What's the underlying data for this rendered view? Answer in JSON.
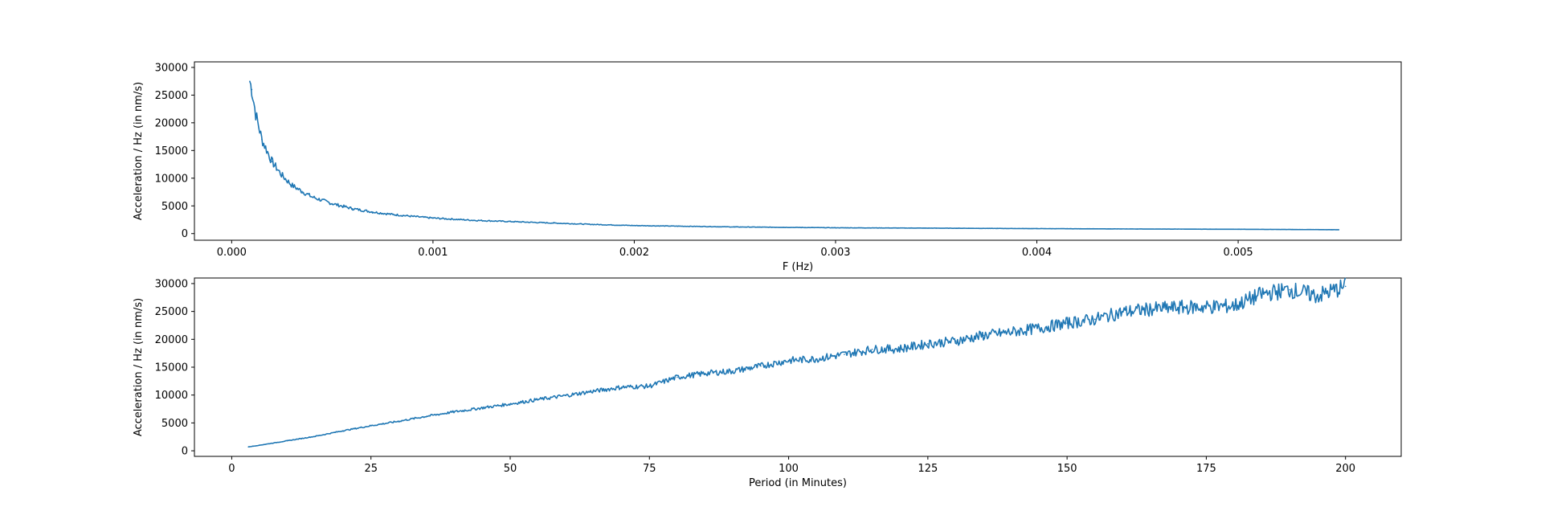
{
  "chart_data": [
    {
      "type": "line",
      "title": "",
      "xlabel": "F (Hz)",
      "ylabel": "Acceleration / Hz (in nm/s)",
      "xlim": [
        -0.000185,
        0.00581
      ],
      "ylim": [
        -1200,
        31000
      ],
      "xticks": [
        0.0,
        0.001,
        0.002,
        0.003,
        0.004,
        0.005
      ],
      "xtick_labels": [
        "0.000",
        "0.001",
        "0.002",
        "0.003",
        "0.004",
        "0.005"
      ],
      "yticks": [
        0,
        5000,
        10000,
        15000,
        20000,
        25000,
        30000
      ],
      "ytick_labels": [
        "0",
        "5000",
        "10000",
        "15000",
        "20000",
        "25000",
        "30000"
      ],
      "grid": false,
      "series": [
        {
          "name": "spectrum_vs_frequency",
          "color": "#1f77b4",
          "x": [
            9e-05,
            0.0001,
            0.00012,
            0.00015,
            0.0002,
            0.00025,
            0.0003,
            0.00035,
            0.0004,
            0.0005,
            0.0006,
            0.0007,
            0.0008,
            0.0009,
            0.001,
            0.0012,
            0.0014,
            0.0016,
            0.0018,
            0.002,
            0.0025,
            0.003,
            0.0035,
            0.004,
            0.0045,
            0.005,
            0.0055
          ],
          "y": [
            27500,
            26000,
            21500,
            17000,
            13000,
            10500,
            8700,
            7600,
            6600,
            5400,
            4500,
            3900,
            3450,
            3100,
            2800,
            2400,
            2150,
            1900,
            1650,
            1450,
            1200,
            1050,
            980,
            900,
            830,
            780,
            700
          ]
        }
      ]
    },
    {
      "type": "line",
      "title": "",
      "xlabel": "Period (in Minutes)",
      "ylabel": "Acceleration / Hz (in nm/s)",
      "xlim": [
        -6.7,
        210
      ],
      "ylim": [
        -1000,
        31000
      ],
      "xticks": [
        0,
        25,
        50,
        75,
        100,
        125,
        150,
        175,
        200
      ],
      "xtick_labels": [
        "0",
        "25",
        "50",
        "75",
        "100",
        "125",
        "150",
        "175",
        "200"
      ],
      "yticks": [
        0,
        5000,
        10000,
        15000,
        20000,
        25000,
        30000
      ],
      "ytick_labels": [
        "0",
        "5000",
        "10000",
        "15000",
        "20000",
        "25000",
        "30000"
      ],
      "grid": false,
      "series": [
        {
          "name": "spectrum_vs_period",
          "color": "#1f77b4",
          "x": [
            3,
            5,
            10,
            15,
            20,
            25,
            30,
            35,
            40,
            45,
            50,
            55,
            60,
            65,
            70,
            75,
            80,
            85,
            90,
            95,
            100,
            105,
            110,
            115,
            120,
            125,
            130,
            135,
            140,
            145,
            150,
            155,
            160,
            165,
            170,
            175,
            180,
            185,
            190,
            195,
            200
          ],
          "y": [
            700,
            1000,
            1800,
            2600,
            3600,
            4500,
            5300,
            6200,
            7000,
            7700,
            8400,
            9200,
            9900,
            10700,
            11400,
            11600,
            13200,
            13900,
            14300,
            15200,
            16200,
            16500,
            17300,
            18200,
            18300,
            19200,
            19700,
            20700,
            21300,
            22000,
            22900,
            23600,
            24900,
            25400,
            25700,
            25800,
            26000,
            28100,
            28900,
            27800,
            29500
          ]
        }
      ]
    }
  ]
}
